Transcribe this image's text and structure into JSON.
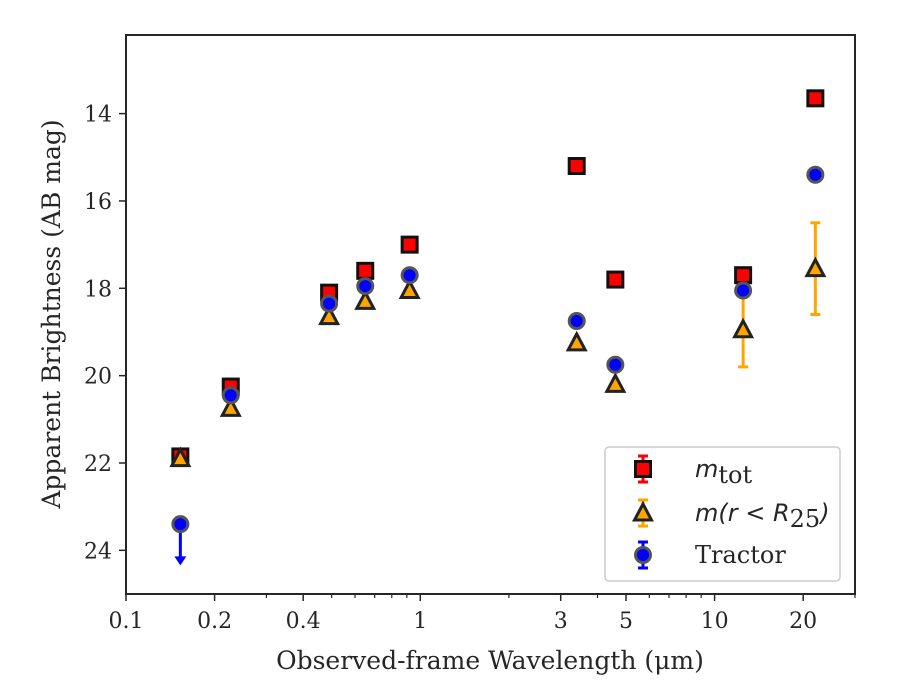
{
  "chart_data": {
    "type": "scatter",
    "title": "",
    "xlabel": "Observed-frame Wavelength (μm)",
    "ylabel": "Apparent Brightness (AB mag)",
    "xscale": "log",
    "xlim": [
      0.1,
      30
    ],
    "ylim": [
      25,
      12.2
    ],
    "y_inverted": true,
    "grid": false,
    "legend_position": "lower-right",
    "xticks": [
      {
        "value": 0.1,
        "label": "0.1"
      },
      {
        "value": 0.2,
        "label": "0.2"
      },
      {
        "value": 0.4,
        "label": "0.4"
      },
      {
        "value": 1,
        "label": "1"
      },
      {
        "value": 3,
        "label": "3"
      },
      {
        "value": 5,
        "label": "5"
      },
      {
        "value": 10,
        "label": "10"
      },
      {
        "value": 20,
        "label": "20"
      }
    ],
    "yticks": [
      {
        "value": 14,
        "label": "14"
      },
      {
        "value": 16,
        "label": "16"
      },
      {
        "value": 18,
        "label": "18"
      },
      {
        "value": 20,
        "label": "20"
      },
      {
        "value": 22,
        "label": "22"
      },
      {
        "value": 24,
        "label": "24"
      }
    ],
    "series": [
      {
        "name": "m_tot",
        "label_main": "m",
        "label_sub": "tot",
        "marker": "square",
        "color": "#ff0000",
        "edge": "#111111",
        "errcolor": "#ff0000",
        "points": [
          {
            "x": 0.153,
            "y": 21.85
          },
          {
            "x": 0.227,
            "y": 20.25
          },
          {
            "x": 0.49,
            "y": 18.1
          },
          {
            "x": 0.65,
            "y": 17.6
          },
          {
            "x": 0.92,
            "y": 17.0
          },
          {
            "x": 3.4,
            "y": 15.2
          },
          {
            "x": 4.6,
            "y": 17.8
          },
          {
            "x": 12.5,
            "y": 17.7
          },
          {
            "x": 22.0,
            "y": 13.65
          }
        ]
      },
      {
        "name": "m(r < R25)",
        "label_main": "m(r < R",
        "label_sub": "25",
        "label_tail": ")",
        "marker": "triangle",
        "color": "#ffa500",
        "edge": "#222222",
        "errcolor": "#ffa500",
        "points": [
          {
            "x": 0.153,
            "y": 21.9
          },
          {
            "x": 0.227,
            "y": 20.75
          },
          {
            "x": 0.49,
            "y": 18.65
          },
          {
            "x": 0.65,
            "y": 18.3
          },
          {
            "x": 0.92,
            "y": 18.05
          },
          {
            "x": 3.4,
            "y": 19.25
          },
          {
            "x": 4.6,
            "y": 20.2
          },
          {
            "x": 12.5,
            "y": 18.95,
            "err": 0.85
          },
          {
            "x": 22.0,
            "y": 17.55,
            "err": 1.05
          }
        ]
      },
      {
        "name": "Tractor",
        "label_main": "Tractor",
        "marker": "circle",
        "color": "#0000ff",
        "edge": "#555555",
        "errcolor": "#0000ff",
        "points": [
          {
            "x": 0.153,
            "y": 23.4,
            "upper_limit": true
          },
          {
            "x": 0.227,
            "y": 20.45
          },
          {
            "x": 0.49,
            "y": 18.35
          },
          {
            "x": 0.65,
            "y": 17.95
          },
          {
            "x": 0.92,
            "y": 17.7
          },
          {
            "x": 3.4,
            "y": 18.75
          },
          {
            "x": 4.6,
            "y": 19.75
          },
          {
            "x": 12.5,
            "y": 18.05
          },
          {
            "x": 22.0,
            "y": 15.4
          }
        ]
      }
    ]
  }
}
